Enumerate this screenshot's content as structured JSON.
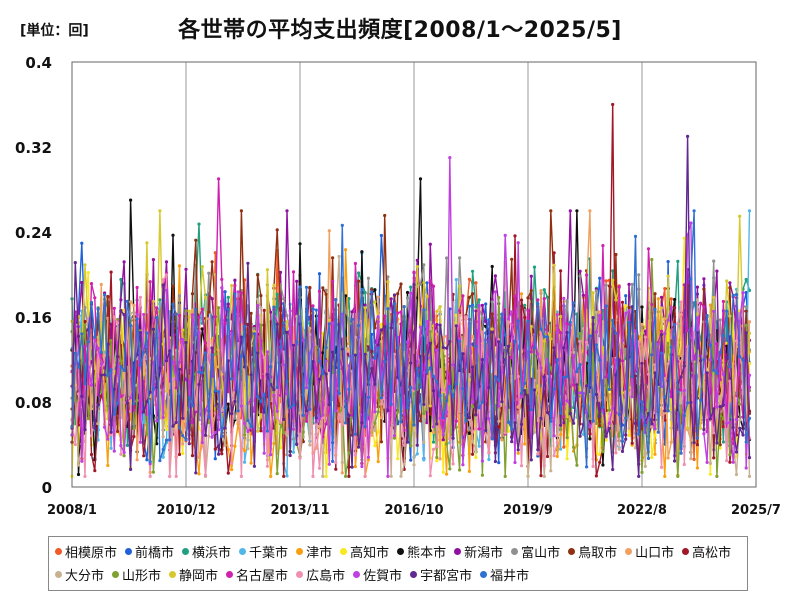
{
  "header": {
    "unit_label": "[単位：回]",
    "title": "各世帯の平均支出頻度[2008/1～2025/5]"
  },
  "chart_data": {
    "type": "line",
    "title": "各世帯の平均支出頻度[2008/1～2025/5]",
    "unit": "[単位：回]",
    "xlabel": "",
    "ylabel": "",
    "x_range": [
      "2008/1",
      "2025/7"
    ],
    "x_ticks": [
      "2008/1",
      "2010/12",
      "2013/11",
      "2016/10",
      "2019/9",
      "2022/8",
      "2025/7"
    ],
    "ylim": [
      0,
      0.4
    ],
    "y_ticks": [
      "0",
      "0.08",
      "0.16",
      "0.24",
      "0.32",
      "0.4"
    ],
    "grid": "vertical",
    "legend_position": "bottom",
    "series": [
      {
        "name": "相模原市",
        "color": "#f05a28"
      },
      {
        "name": "前橋市",
        "color": "#2060d8"
      },
      {
        "name": "横浜市",
        "color": "#20a080"
      },
      {
        "name": "千葉市",
        "color": "#50b8e8"
      },
      {
        "name": "津市",
        "color": "#f8a010"
      },
      {
        "name": "高知市",
        "color": "#f8e820"
      },
      {
        "name": "熊本市",
        "color": "#101010"
      },
      {
        "name": "新潟市",
        "color": "#9010a0"
      },
      {
        "name": "富山市",
        "color": "#909090"
      },
      {
        "name": "鳥取市",
        "color": "#903010"
      },
      {
        "name": "山口市",
        "color": "#f0a060"
      },
      {
        "name": "高松市",
        "color": "#a01828"
      },
      {
        "name": "大分市",
        "color": "#c8b090"
      },
      {
        "name": "山形市",
        "color": "#80a030"
      },
      {
        "name": "静岡市",
        "color": "#d8c830"
      },
      {
        "name": "名古屋市",
        "color": "#d020b0"
      },
      {
        "name": "広島市",
        "color": "#f090b0"
      },
      {
        "name": "佐賀市",
        "color": "#c040e0"
      },
      {
        "name": "宇都宮市",
        "color": "#602890"
      },
      {
        "name": "福井市",
        "color": "#3070d0"
      }
    ],
    "peaks": [
      {
        "series": "高松市",
        "x": "2021/11",
        "y": 0.36
      },
      {
        "series": "宇都宮市",
        "x": "2023/10",
        "y": 0.33
      },
      {
        "series": "佐賀市",
        "x": "2017/9",
        "y": 0.31
      },
      {
        "series": "熊本市",
        "x": "2016/12",
        "y": 0.29
      },
      {
        "series": "名古屋市",
        "x": "2011/10",
        "y": 0.29
      },
      {
        "series": "熊本市",
        "x": "2009/7",
        "y": 0.27
      }
    ]
  }
}
